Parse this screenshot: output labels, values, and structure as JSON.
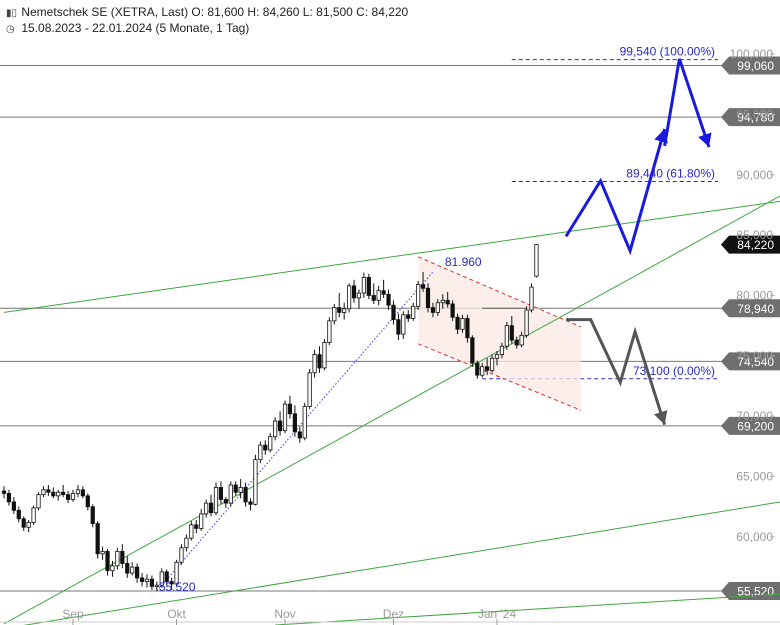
{
  "header": {
    "title_line": "Nemetschek SE (XETRA, Last)  O: 81,600  H: 84,260  L: 81,500  C: 84,220",
    "range_line": "15.08.2023 - 22.01.2024  (5 Monate, 1 Tag)",
    "chart_icon": "candlestick-icon",
    "clock_icon": "clock-icon"
  },
  "chart_data": {
    "type": "candlestick",
    "instrument": "Nemetschek SE (XETRA, Last)",
    "ohlc_last": {
      "open": 81.6,
      "high": 84.26,
      "low": 81.5,
      "close": 84.22
    },
    "x_ticks": [
      {
        "label": "Sep",
        "bar": 14
      },
      {
        "label": "Okt",
        "bar": 35
      },
      {
        "label": "Nov",
        "bar": 57
      },
      {
        "label": "Dez",
        "bar": 79
      },
      {
        "label": "Jan '24",
        "bar": 100
      }
    ],
    "y_ticks": [
      {
        "label": "60,000",
        "value": 60
      },
      {
        "label": "65,000",
        "value": 65
      },
      {
        "label": "70,000",
        "value": 70
      },
      {
        "label": "75,000",
        "value": 75
      },
      {
        "label": "80,000",
        "value": 80
      },
      {
        "label": "85,000",
        "value": 85
      },
      {
        "label": "90,000",
        "value": 90
      },
      {
        "label": "95,000",
        "value": 95
      },
      {
        "label": "100,000",
        "value": 100
      }
    ],
    "ylim": [
      52.7,
      101.5
    ],
    "xlim": [
      -0.5,
      159
    ],
    "horizontal_levels": [
      {
        "label": "99,060",
        "value": 99.06
      },
      {
        "label": "94,780",
        "value": 94.78
      },
      {
        "label": "78,940",
        "value": 78.94
      },
      {
        "label": "74,540",
        "value": 74.54
      },
      {
        "label": "69,200",
        "value": 69.2
      },
      {
        "label": "55,520",
        "value": 55.52
      }
    ],
    "last_price": {
      "label": "84,220",
      "value": 84.22
    },
    "fib_levels": [
      {
        "label": "99,540 (100.00%)",
        "value": 99.54,
        "bar_start": 103
      },
      {
        "label": "89,440 (61.80%)",
        "value": 89.44,
        "bar_start": 103
      },
      {
        "label": "73,100 (0.00%)",
        "value": 73.1,
        "bar_start": 97
      }
    ],
    "annotations": [
      {
        "label": "81.960",
        "bar": 87,
        "value": 81.96
      },
      {
        "label": "55.520",
        "bar": 31,
        "value": 55.52
      }
    ],
    "fib_trend": [
      {
        "bar": 31,
        "value": 55.52
      },
      {
        "bar": 87,
        "value": 81.96
      }
    ],
    "trendlines": [
      {
        "p1": {
          "bar": 0,
          "value": 78.6
        },
        "p2": {
          "bar": 159,
          "value": 87.9
        }
      },
      {
        "p1": {
          "bar": 0,
          "value": 52.8
        },
        "p2": {
          "bar": 159,
          "value": 88.6
        }
      },
      {
        "p1": {
          "bar": 0,
          "value": 52.4
        },
        "p2": {
          "bar": 159,
          "value": 63.0
        }
      },
      {
        "p1": {
          "bar": 55,
          "value": 52.7
        },
        "p2": {
          "bar": 159,
          "value": 55.3
        }
      }
    ],
    "channel": {
      "upper": [
        {
          "bar": 84,
          "value": 83.2
        },
        {
          "bar": 117,
          "value": 77.4
        }
      ],
      "lower": [
        {
          "bar": 84,
          "value": 76.0
        },
        {
          "bar": 117,
          "value": 70.5
        }
      ]
    },
    "bull_scenario": [
      {
        "bar": 114,
        "value": 84.9
      },
      {
        "bar": 121,
        "value": 89.5
      },
      {
        "bar": 127,
        "value": 83.7
      },
      {
        "bar": 134,
        "value": 93.8
      },
      {
        "bar": 134,
        "value": 92.4
      },
      {
        "bar": 137,
        "value": 99.6
      },
      {
        "bar": 143,
        "value": 92.3
      }
    ],
    "bear_scenario": [
      {
        "bar": 114,
        "value": 78.0
      },
      {
        "bar": 119,
        "value": 78.0
      },
      {
        "bar": 125,
        "value": 72.8
      },
      {
        "bar": 128,
        "value": 77.0
      },
      {
        "bar": 134,
        "value": 69.3
      }
    ],
    "candles": [
      [
        63.8,
        64.2,
        63.2,
        63.6
      ],
      [
        63.6,
        63.9,
        62.6,
        62.9
      ],
      [
        62.9,
        63.3,
        61.9,
        62.2
      ],
      [
        62.2,
        62.5,
        61.2,
        61.5
      ],
      [
        61.5,
        61.7,
        60.5,
        60.8
      ],
      [
        60.8,
        61.4,
        60.4,
        61.2
      ],
      [
        61.2,
        62.6,
        61.0,
        62.4
      ],
      [
        62.4,
        63.7,
        62.2,
        63.5
      ],
      [
        63.5,
        64.2,
        63.3,
        63.9
      ],
      [
        63.9,
        64.3,
        63.4,
        63.7
      ],
      [
        63.7,
        64.1,
        63.2,
        63.4
      ],
      [
        63.4,
        63.9,
        63.0,
        63.7
      ],
      [
        63.7,
        64.3,
        63.3,
        63.5
      ],
      [
        63.5,
        63.8,
        62.8,
        63.1
      ],
      [
        63.1,
        63.9,
        62.9,
        63.6
      ],
      [
        63.6,
        64.3,
        63.3,
        63.9
      ],
      [
        63.9,
        64.2,
        63.2,
        63.4
      ],
      [
        63.4,
        63.6,
        62.2,
        62.5
      ],
      [
        62.5,
        62.7,
        60.8,
        61.1
      ],
      [
        61.1,
        61.3,
        58.2,
        58.6
      ],
      [
        58.6,
        59.2,
        58.1,
        58.8
      ],
      [
        58.8,
        59.0,
        56.8,
        57.2
      ],
      [
        57.2,
        58.0,
        56.7,
        57.6
      ],
      [
        57.6,
        59.1,
        57.3,
        58.8
      ],
      [
        58.8,
        59.4,
        57.4,
        57.8
      ],
      [
        57.8,
        58.4,
        56.6,
        57.0
      ],
      [
        57.0,
        57.9,
        56.8,
        57.5
      ],
      [
        57.5,
        57.8,
        56.2,
        56.6
      ],
      [
        56.6,
        57.0,
        55.9,
        56.3
      ],
      [
        56.3,
        56.9,
        55.8,
        56.5
      ],
      [
        56.5,
        56.8,
        55.6,
        55.9
      ],
      [
        55.9,
        56.3,
        55.52,
        56.0
      ],
      [
        56.0,
        57.4,
        55.8,
        57.1
      ],
      [
        57.1,
        57.3,
        56.0,
        56.3
      ],
      [
        56.3,
        56.6,
        55.6,
        56.1
      ],
      [
        56.1,
        58.1,
        55.9,
        57.9
      ],
      [
        57.9,
        59.4,
        57.7,
        59.1
      ],
      [
        59.1,
        60.2,
        58.8,
        59.9
      ],
      [
        59.9,
        61.3,
        59.7,
        61.0
      ],
      [
        61.0,
        61.4,
        60.3,
        60.7
      ],
      [
        60.7,
        62.3,
        60.5,
        61.9
      ],
      [
        61.9,
        63.1,
        61.6,
        62.8
      ],
      [
        62.8,
        63.5,
        61.7,
        62.0
      ],
      [
        62.0,
        64.5,
        61.8,
        64.1
      ],
      [
        64.1,
        64.6,
        62.7,
        63.1
      ],
      [
        63.1,
        63.3,
        62.4,
        62.8
      ],
      [
        62.8,
        64.6,
        62.5,
        64.3
      ],
      [
        64.3,
        64.6,
        63.4,
        63.7
      ],
      [
        63.7,
        64.8,
        63.2,
        64.1
      ],
      [
        64.1,
        64.5,
        62.5,
        62.9
      ],
      [
        62.9,
        63.2,
        62.2,
        62.7
      ],
      [
        62.7,
        66.8,
        62.6,
        66.4
      ],
      [
        66.4,
        67.9,
        66.1,
        67.6
      ],
      [
        67.6,
        68.0,
        66.8,
        67.2
      ],
      [
        67.2,
        68.6,
        67.0,
        68.3
      ],
      [
        68.3,
        69.9,
        68.0,
        69.6
      ],
      [
        69.6,
        70.4,
        68.4,
        68.8
      ],
      [
        68.8,
        71.3,
        68.6,
        71.0
      ],
      [
        71.0,
        71.7,
        69.8,
        70.2
      ],
      [
        70.2,
        70.9,
        68.3,
        68.7
      ],
      [
        68.7,
        69.1,
        67.8,
        68.2
      ],
      [
        68.2,
        71.1,
        68.0,
        70.8
      ],
      [
        70.8,
        73.9,
        70.6,
        73.6
      ],
      [
        73.6,
        75.5,
        73.2,
        75.1
      ],
      [
        75.1,
        75.8,
        73.6,
        74.0
      ],
      [
        74.0,
        76.4,
        73.8,
        76.1
      ],
      [
        76.1,
        78.2,
        75.9,
        77.9
      ],
      [
        77.9,
        79.3,
        77.6,
        79.0
      ],
      [
        79.0,
        80.2,
        78.2,
        78.6
      ],
      [
        78.6,
        79.4,
        78.0,
        78.9
      ],
      [
        78.9,
        81.0,
        78.6,
        80.8
      ],
      [
        80.8,
        81.3,
        79.4,
        79.8
      ],
      [
        79.8,
        80.5,
        78.9,
        80.2
      ],
      [
        80.2,
        81.9,
        79.8,
        81.5
      ],
      [
        81.5,
        81.8,
        79.7,
        80.0
      ],
      [
        80.0,
        81.0,
        79.3,
        79.6
      ],
      [
        79.6,
        80.8,
        79.2,
        80.4
      ],
      [
        80.4,
        81.3,
        79.8,
        80.1
      ],
      [
        80.1,
        80.5,
        78.8,
        79.2
      ],
      [
        79.2,
        79.6,
        77.6,
        78.0
      ],
      [
        78.0,
        78.5,
        76.3,
        76.8
      ],
      [
        76.8,
        78.7,
        76.4,
        78.4
      ],
      [
        78.4,
        78.8,
        77.8,
        78.1
      ],
      [
        78.1,
        79.4,
        77.9,
        79.1
      ],
      [
        79.1,
        81.2,
        78.8,
        80.9
      ],
      [
        80.9,
        81.96,
        80.3,
        80.6
      ],
      [
        80.6,
        81.0,
        78.6,
        79.0
      ],
      [
        79.0,
        79.4,
        78.2,
        78.6
      ],
      [
        78.6,
        79.7,
        78.3,
        79.4
      ],
      [
        79.4,
        80.1,
        78.9,
        79.6
      ],
      [
        79.6,
        80.3,
        79.0,
        79.3
      ],
      [
        79.3,
        79.6,
        77.9,
        78.2
      ],
      [
        78.2,
        78.5,
        76.8,
        77.2
      ],
      [
        77.2,
        78.4,
        76.9,
        78.1
      ],
      [
        78.1,
        78.4,
        76.1,
        76.5
      ],
      [
        76.5,
        76.7,
        74.1,
        74.4
      ],
      [
        74.4,
        74.6,
        73.1,
        73.4
      ],
      [
        73.4,
        74.4,
        73.2,
        74.1
      ],
      [
        74.1,
        74.8,
        73.4,
        73.8
      ],
      [
        73.8,
        75.1,
        73.6,
        74.8
      ],
      [
        74.8,
        75.4,
        74.2,
        75.1
      ],
      [
        75.1,
        76.1,
        74.8,
        75.8
      ],
      [
        75.8,
        77.8,
        75.5,
        77.5
      ],
      [
        77.5,
        78.3,
        76.0,
        76.3
      ],
      [
        76.3,
        76.6,
        75.6,
        75.9
      ],
      [
        75.9,
        77.0,
        75.7,
        76.7
      ],
      [
        76.7,
        79.1,
        76.5,
        78.8
      ],
      [
        78.8,
        81.0,
        78.6,
        80.7
      ],
      [
        81.6,
        84.26,
        81.5,
        84.22
      ]
    ]
  }
}
